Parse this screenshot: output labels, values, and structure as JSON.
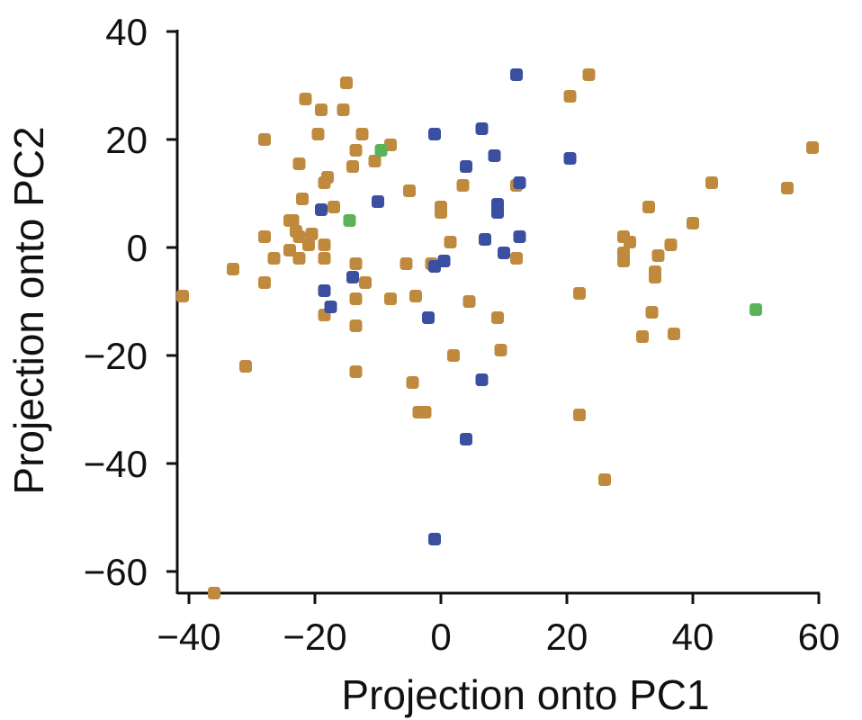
{
  "chart_data": {
    "type": "scatter",
    "title": "",
    "xlabel": "Projection onto PC1",
    "ylabel": "Projection onto PC2",
    "xlim": [
      -42,
      60
    ],
    "ylim": [
      -64,
      40
    ],
    "xticks": [
      -40,
      -20,
      0,
      20,
      40,
      60
    ],
    "yticks": [
      40,
      20,
      0,
      -20,
      -40,
      -60
    ],
    "xtick_labels": [
      "−40",
      "−20",
      "0",
      "20",
      "40",
      "60"
    ],
    "ytick_labels": [
      "40",
      "20",
      "0",
      "−20",
      "−40",
      "−60"
    ],
    "grid": false,
    "series": [
      {
        "color": "#c08a3e",
        "points": [
          [
            -41,
            -9
          ],
          [
            -36,
            -64
          ],
          [
            -33,
            -4
          ],
          [
            -31,
            -22
          ],
          [
            -28,
            20
          ],
          [
            -28,
            2
          ],
          [
            -28,
            -6.5
          ],
          [
            -26.5,
            -2
          ],
          [
            -24,
            5
          ],
          [
            -24,
            -0.5
          ],
          [
            -23.5,
            5
          ],
          [
            -23,
            3
          ],
          [
            -22.5,
            2
          ],
          [
            -22.5,
            -2
          ],
          [
            -22.5,
            15.5
          ],
          [
            -22,
            9
          ],
          [
            -21.5,
            27.5
          ],
          [
            -21,
            0.5
          ],
          [
            -20.5,
            2.5
          ],
          [
            -19.5,
            21
          ],
          [
            -19,
            25.5
          ],
          [
            -18.5,
            12
          ],
          [
            -18.5,
            0.5
          ],
          [
            -18.5,
            -2
          ],
          [
            -18.5,
            -12.5
          ],
          [
            -18,
            13
          ],
          [
            -17,
            7.5
          ],
          [
            -15.5,
            25.5
          ],
          [
            -15,
            30.5
          ],
          [
            -14,
            15
          ],
          [
            -13.5,
            18
          ],
          [
            -13.5,
            -3
          ],
          [
            -13.5,
            -9.5
          ],
          [
            -13.5,
            -14.5
          ],
          [
            -13.5,
            -23
          ],
          [
            -12.5,
            21
          ],
          [
            -12,
            -6.5
          ],
          [
            -10.5,
            16
          ],
          [
            -8,
            19
          ],
          [
            -8,
            -9.5
          ],
          [
            -5.5,
            -3
          ],
          [
            -5,
            10.5
          ],
          [
            -4.5,
            -25
          ],
          [
            -4,
            -9
          ],
          [
            -3.5,
            -30.5
          ],
          [
            -2.5,
            -30.5
          ],
          [
            0,
            7.5
          ],
          [
            0,
            6.5
          ],
          [
            1.5,
            1
          ],
          [
            2,
            -20
          ],
          [
            3.5,
            11.5
          ],
          [
            4.5,
            -10
          ],
          [
            -1.5,
            -3
          ],
          [
            9,
            -13
          ],
          [
            9.5,
            -19
          ],
          [
            12,
            11.5
          ],
          [
            12,
            -2
          ],
          [
            20.5,
            28
          ],
          [
            22,
            -8.5
          ],
          [
            22,
            -31
          ],
          [
            23.5,
            32
          ],
          [
            26,
            -43
          ],
          [
            29,
            -1
          ],
          [
            29,
            -2.5
          ],
          [
            29,
            2
          ],
          [
            30,
            1
          ],
          [
            32,
            -16.5
          ],
          [
            33,
            7.5
          ],
          [
            33.5,
            -12
          ],
          [
            34,
            -4.5
          ],
          [
            34,
            -5.5
          ],
          [
            34.5,
            -1.5
          ],
          [
            36.5,
            0.5
          ],
          [
            37,
            -16
          ],
          [
            40,
            4.5
          ],
          [
            43,
            12
          ],
          [
            55,
            11
          ],
          [
            59,
            18.5
          ]
        ]
      },
      {
        "color": "#3a4fa0",
        "points": [
          [
            -19,
            7
          ],
          [
            -18.5,
            -8
          ],
          [
            -17.5,
            -11
          ],
          [
            -14,
            -5.5
          ],
          [
            -10,
            8.5
          ],
          [
            -2,
            -13
          ],
          [
            -1,
            -3.5
          ],
          [
            -1,
            -54
          ],
          [
            -1,
            21
          ],
          [
            0.5,
            -2.5
          ],
          [
            4,
            15
          ],
          [
            4,
            -35.5
          ],
          [
            6.5,
            22
          ],
          [
            6.5,
            -24.5
          ],
          [
            7,
            1.5
          ],
          [
            8.5,
            17
          ],
          [
            9,
            8
          ],
          [
            9,
            6.5
          ],
          [
            10,
            -1
          ],
          [
            12.5,
            12
          ],
          [
            12.5,
            2
          ],
          [
            12,
            32
          ],
          [
            20.5,
            16.5
          ]
        ]
      },
      {
        "color": "#59b359",
        "points": [
          [
            -14.5,
            5
          ],
          [
            -9.5,
            18
          ],
          [
            50,
            -11.5
          ]
        ]
      }
    ]
  }
}
